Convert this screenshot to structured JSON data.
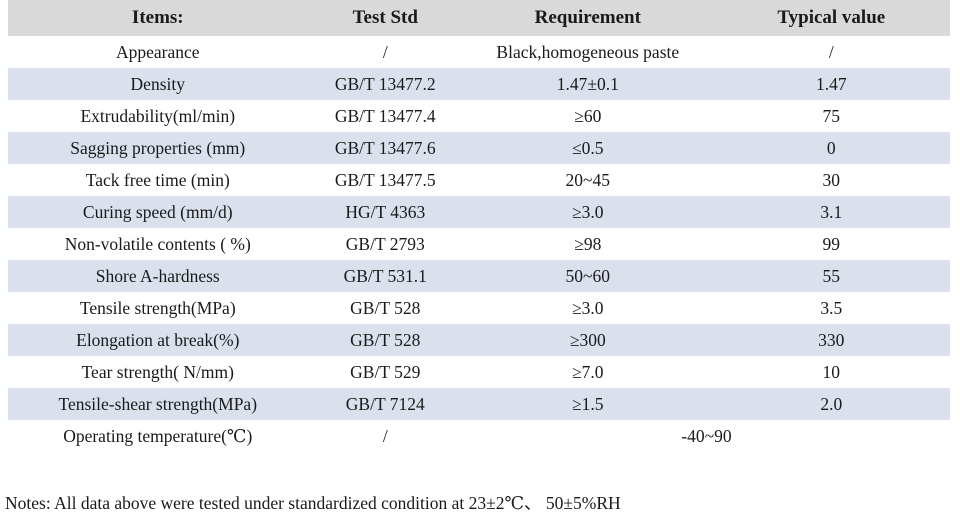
{
  "table": {
    "headers": [
      "Items:",
      "Test Std",
      "Requirement",
      "Typical value"
    ],
    "rows": [
      {
        "item": "Appearance",
        "std": "/",
        "req": "Black,homogeneous paste",
        "typ": "/"
      },
      {
        "item": "Density",
        "std": "GB/T 13477.2",
        "req": "1.47±0.1",
        "typ": "1.47"
      },
      {
        "item": "Extrudability(ml/min)",
        "std": "GB/T 13477.4",
        "req": "≥60",
        "typ": "75"
      },
      {
        "item": "Sagging properties (mm)",
        "std": "GB/T 13477.6",
        "req": "≤0.5",
        "typ": "0"
      },
      {
        "item": "Tack free time (min)",
        "std": "GB/T 13477.5",
        "req": "20~45",
        "typ": "30"
      },
      {
        "item": "Curing speed (mm/d)",
        "std": "HG/T 4363",
        "req": "≥3.0",
        "typ": "3.1"
      },
      {
        "item": "Non-volatile contents ( %)",
        "std": "GB/T 2793",
        "req": "≥98",
        "typ": "99"
      },
      {
        "item": "Shore A-hardness",
        "std": "GB/T 531.1",
        "req": "50~60",
        "typ": "55"
      },
      {
        "item": "Tensile strength(MPa)",
        "std": "GB/T 528",
        "req": "≥3.0",
        "typ": "3.5"
      },
      {
        "item": "Elongation at break(%)",
        "std": "GB/T 528",
        "req": "≥300",
        "typ": "330"
      },
      {
        "item": "Tear strength( N/mm)",
        "std": "GB/T 529",
        "req": "≥7.0",
        "typ": "10"
      },
      {
        "item": "Tensile-shear strength(MPa)",
        "std": "GB/T 7124",
        "req": "≥1.5",
        "typ": "2.0"
      },
      {
        "item": "Operating temperature(℃)",
        "std": "/",
        "req": "-40~90",
        "typ": ""
      }
    ]
  },
  "notes": "Notes: All data above were tested under standardized condition at 23±2℃、 50±5%RH",
  "colors": {
    "header_bg": "#d9d9d9",
    "band_bg": "#dae1ec",
    "text": "#1a1a1a"
  }
}
